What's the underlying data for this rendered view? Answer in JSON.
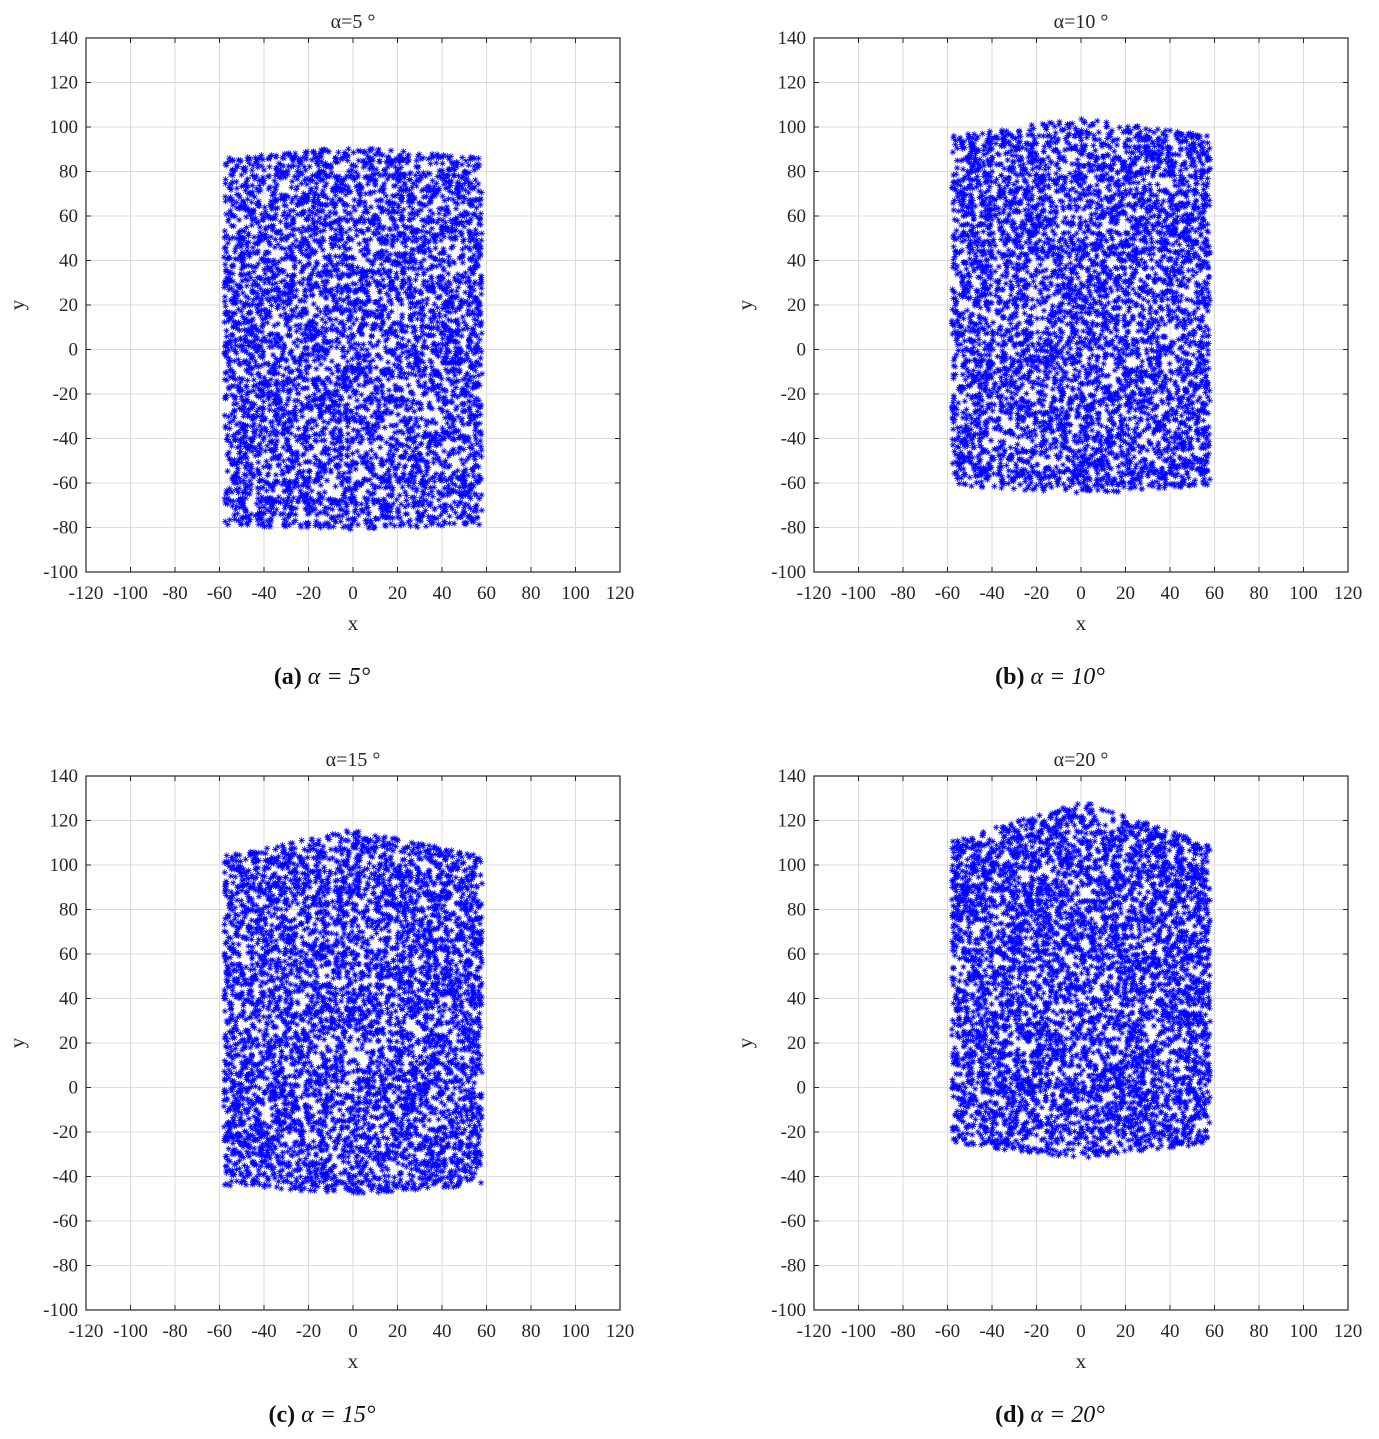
{
  "figure": {
    "colors": {
      "marker": "#0000ff",
      "grid": "#dcdcdc",
      "axes": "#262626"
    }
  },
  "chart_data": [
    {
      "type": "scatter",
      "title": "α=5 °",
      "xlabel": "x",
      "ylabel": "y",
      "xlim": [
        -120,
        120
      ],
      "ylim": [
        -100,
        140
      ],
      "xticks": [
        -120,
        -100,
        -80,
        -60,
        -40,
        -20,
        0,
        20,
        40,
        60,
        80,
        100,
        120
      ],
      "yticks": [
        -100,
        -80,
        -60,
        -40,
        -20,
        0,
        20,
        40,
        60,
        80,
        100,
        120,
        140
      ],
      "grid": true,
      "marker": "asterisk",
      "color": "#0000ff",
      "caption": {
        "letter": "(a)",
        "text": "α = 5°"
      },
      "point_cloud": {
        "x_range": [
          -58,
          58
        ],
        "top_edge": [
          [
            -58,
            86
          ],
          [
            0,
            91
          ],
          [
            58,
            86
          ]
        ],
        "bottom_edge": [
          [
            -58,
            -79
          ],
          [
            0,
            -81
          ],
          [
            58,
            -79
          ]
        ],
        "approx_points": 5000
      }
    },
    {
      "type": "scatter",
      "title": "α=10 °",
      "xlabel": "x",
      "ylabel": "y",
      "xlim": [
        -120,
        120
      ],
      "ylim": [
        -100,
        140
      ],
      "xticks": [
        -120,
        -100,
        -80,
        -60,
        -40,
        -20,
        0,
        20,
        40,
        60,
        80,
        100,
        120
      ],
      "yticks": [
        -100,
        -80,
        -60,
        -40,
        -20,
        0,
        20,
        40,
        60,
        80,
        100,
        120,
        140
      ],
      "grid": true,
      "marker": "asterisk",
      "color": "#0000ff",
      "caption": {
        "letter": "(b)",
        "text": "α = 10°"
      },
      "point_cloud": {
        "x_range": [
          -58,
          58
        ],
        "top_edge": [
          [
            -58,
            96
          ],
          [
            0,
            104
          ],
          [
            58,
            96
          ]
        ],
        "bottom_edge": [
          [
            -58,
            -61
          ],
          [
            0,
            -65
          ],
          [
            58,
            -61
          ]
        ],
        "approx_points": 5000
      }
    },
    {
      "type": "scatter",
      "title": "α=15 °",
      "xlabel": "x",
      "ylabel": "y",
      "xlim": [
        -120,
        120
      ],
      "ylim": [
        -100,
        140
      ],
      "xticks": [
        -120,
        -100,
        -80,
        -60,
        -40,
        -20,
        0,
        20,
        40,
        60,
        80,
        100,
        120
      ],
      "yticks": [
        -100,
        -80,
        -60,
        -40,
        -20,
        0,
        20,
        40,
        60,
        80,
        100,
        120,
        140
      ],
      "grid": true,
      "marker": "asterisk",
      "color": "#0000ff",
      "caption": {
        "letter": "(c)",
        "text": "α = 15°"
      },
      "point_cloud": {
        "x_range": [
          -58,
          58
        ],
        "top_edge": [
          [
            -58,
            104
          ],
          [
            0,
            116
          ],
          [
            58,
            104
          ]
        ],
        "bottom_edge": [
          [
            -58,
            -44
          ],
          [
            0,
            -48
          ],
          [
            58,
            -44
          ]
        ],
        "approx_points": 5000
      }
    },
    {
      "type": "scatter",
      "title": "α=20 °",
      "xlabel": "x",
      "ylabel": "y",
      "xlim": [
        -120,
        120
      ],
      "ylim": [
        -100,
        140
      ],
      "xticks": [
        -120,
        -100,
        -80,
        -60,
        -40,
        -20,
        0,
        20,
        40,
        60,
        80,
        100,
        120
      ],
      "yticks": [
        -100,
        -80,
        -60,
        -40,
        -20,
        0,
        20,
        40,
        60,
        80,
        100,
        120,
        140
      ],
      "grid": true,
      "marker": "asterisk",
      "color": "#0000ff",
      "caption": {
        "letter": "(d)",
        "text": "α = 20°"
      },
      "point_cloud": {
        "x_range": [
          -58,
          58
        ],
        "top_edge": [
          [
            -58,
            111
          ],
          [
            0,
            129
          ],
          [
            58,
            109
          ]
        ],
        "bottom_edge": [
          [
            -58,
            -25
          ],
          [
            0,
            -32
          ],
          [
            58,
            -25
          ]
        ],
        "approx_points": 5000
      }
    }
  ]
}
